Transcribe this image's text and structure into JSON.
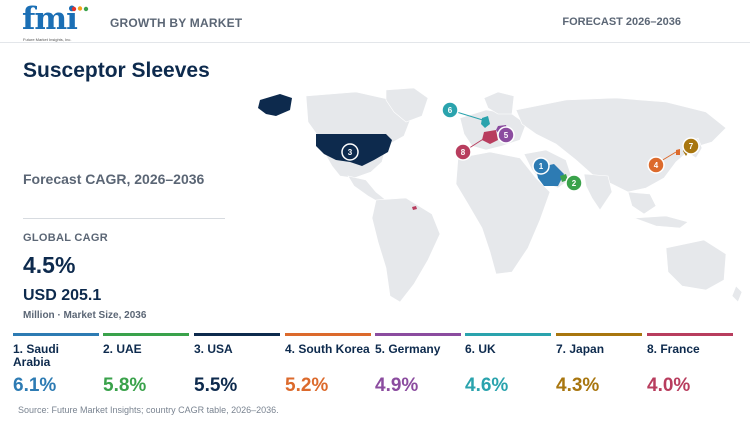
{
  "header": {
    "logo_text": "fmi",
    "logo_tagline": "Future Market Insights, Inc.",
    "left_label": "GROWTH BY MARKET",
    "right_label": "FORECAST 2026–2036"
  },
  "summary": {
    "title": "Susceptor Sleeves",
    "cagr_label": "Forecast CAGR, 2026–2036",
    "global_cagr_label": "GLOBAL CAGR",
    "global_cagr_value": "4.5%",
    "market_size_value": "USD 205.1",
    "market_size_caption": "Million · Market Size, 2036"
  },
  "countries": [
    {
      "rank": "1",
      "name": "1. Saudi Arabia",
      "cagr": "6.1%",
      "color": "#2d7bb3"
    },
    {
      "rank": "2",
      "name": "2. UAE",
      "cagr": "5.8%",
      "color": "#3aa24b"
    },
    {
      "rank": "3",
      "name": "3. USA",
      "cagr": "5.5%",
      "color": "#0d2a4d"
    },
    {
      "rank": "4",
      "name": "4. South Korea",
      "cagr": "5.2%",
      "color": "#dc6a2c"
    },
    {
      "rank": "5",
      "name": "5. Germany",
      "cagr": "4.9%",
      "color": "#8b4c9f"
    },
    {
      "rank": "6",
      "name": "6. UK",
      "cagr": "4.6%",
      "color": "#2aa3ad"
    },
    {
      "rank": "7",
      "name": "7. Japan",
      "cagr": "4.3%",
      "color": "#a8760f"
    },
    {
      "rank": "8",
      "name": "8. France",
      "cagr": "4.0%",
      "color": "#b83d5e"
    }
  ],
  "map_markers": [
    "1",
    "2",
    "3",
    "4",
    "5",
    "6",
    "7",
    "8"
  ],
  "source": "Source: Future Market Insights; country CAGR table, 2026–2036."
}
